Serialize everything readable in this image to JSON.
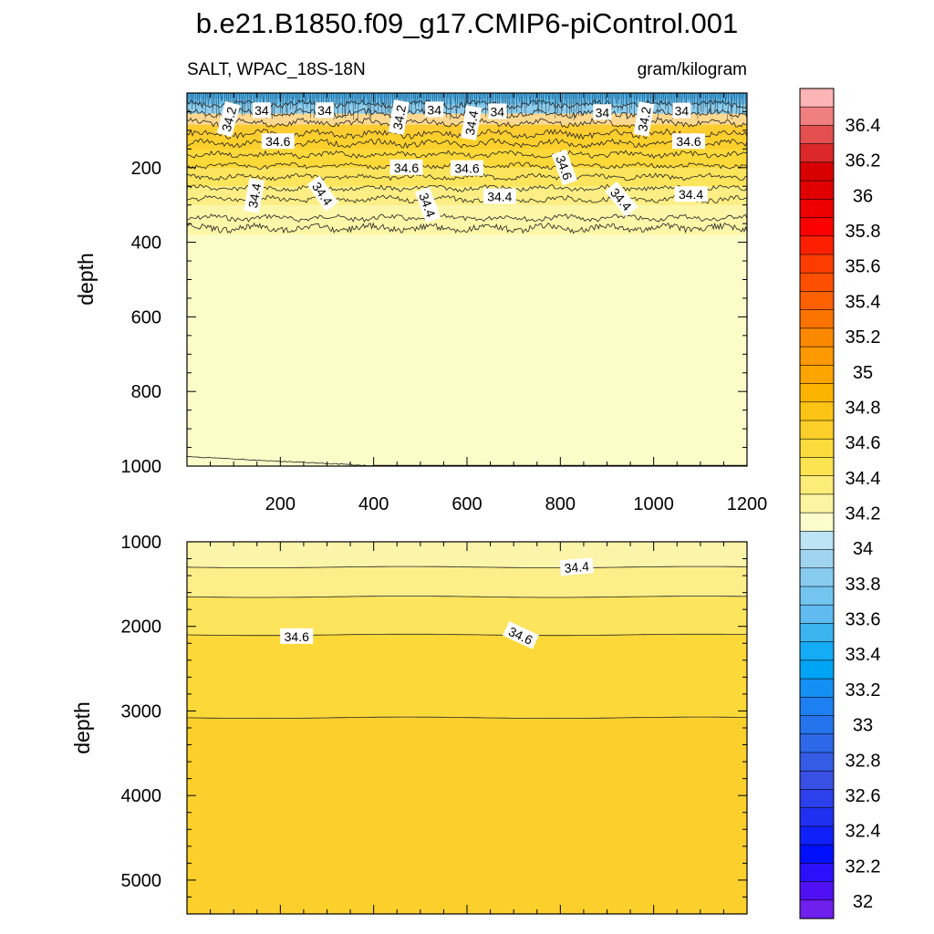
{
  "title": "b.e21.B1850.f09_g17.CMIP6-piControl.001",
  "chart_data": [
    {
      "type": "contour",
      "panel": "upper",
      "left_label": "SALT, WPAC_18S-18N",
      "right_label": "gram/kilogram",
      "ylabel": "depth",
      "xlabel": "",
      "xlim": [
        0,
        1200
      ],
      "ylim": [
        1000,
        0
      ],
      "xticks": [
        "200",
        "400",
        "600",
        "800",
        "1000",
        "1200"
      ],
      "yticks": [
        "200",
        "400",
        "600",
        "800",
        "1000"
      ],
      "contour_levels": [
        {
          "value": 34.4,
          "depth": 335,
          "roughness": 8
        },
        {
          "value": 34.4,
          "depth": 285,
          "roughness": 8
        },
        {
          "value": 34.4,
          "depth": 255,
          "roughness": 7
        },
        {
          "value": 34.6,
          "depth": 225,
          "roughness": 7
        },
        {
          "value": 34.6,
          "depth": 195,
          "roughness": 7
        },
        {
          "value": 34.6,
          "depth": 165,
          "roughness": 8
        },
        {
          "value": 34.6,
          "depth": 135,
          "roughness": 9
        },
        {
          "value": 34.2,
          "depth": 110,
          "roughness": 10
        },
        {
          "value": 34,
          "depth": 80,
          "roughness": 10
        },
        {
          "value": 34.2,
          "depth": 55,
          "roughness": 10
        },
        {
          "value": 34,
          "depth": 30,
          "roughness": 9
        }
      ],
      "contour_labels": [
        {
          "text": "34.2",
          "x": 90,
          "y": 70,
          "angle": -75
        },
        {
          "text": "34",
          "x": 160,
          "y": 47,
          "angle": 0
        },
        {
          "text": "34",
          "x": 295,
          "y": 47,
          "angle": 0
        },
        {
          "text": "34.2",
          "x": 455,
          "y": 65,
          "angle": -80
        },
        {
          "text": "34",
          "x": 530,
          "y": 45,
          "angle": 0
        },
        {
          "text": "34.4",
          "x": 610,
          "y": 80,
          "angle": -80
        },
        {
          "text": "34",
          "x": 665,
          "y": 50,
          "angle": 0
        },
        {
          "text": "34",
          "x": 890,
          "y": 52,
          "angle": 0
        },
        {
          "text": "34.2",
          "x": 980,
          "y": 70,
          "angle": -80
        },
        {
          "text": "34",
          "x": 1060,
          "y": 48,
          "angle": 0
        },
        {
          "text": "34.6",
          "x": 195,
          "y": 130,
          "angle": 0
        },
        {
          "text": "34.6",
          "x": 1075,
          "y": 130,
          "angle": 0
        },
        {
          "text": "34.6",
          "x": 470,
          "y": 200,
          "angle": 0
        },
        {
          "text": "34.6",
          "x": 600,
          "y": 202,
          "angle": 0
        },
        {
          "text": "34.6",
          "x": 808,
          "y": 200,
          "angle": 70
        },
        {
          "text": "34.4",
          "x": 145,
          "y": 275,
          "angle": -80
        },
        {
          "text": "34.4",
          "x": 290,
          "y": 270,
          "angle": 55
        },
        {
          "text": "34.4",
          "x": 515,
          "y": 300,
          "angle": 70
        },
        {
          "text": "34.4",
          "x": 670,
          "y": 278,
          "angle": 0
        },
        {
          "text": "34.4",
          "x": 930,
          "y": 285,
          "angle": 50
        },
        {
          "text": "34.4",
          "x": 1080,
          "y": 272,
          "angle": 0
        }
      ]
    },
    {
      "type": "contour",
      "panel": "lower",
      "ylabel": "depth",
      "xlabel": "",
      "xlim": [
        0,
        1200
      ],
      "ylim": [
        5400,
        1000
      ],
      "yticks": [
        "1000",
        "2000",
        "3000",
        "4000",
        "5000"
      ],
      "contour_levels": [
        {
          "value": 34.4,
          "depth": 1300
        },
        {
          "value": 34.4,
          "depth": 1650
        },
        {
          "value": 34.6,
          "depth": 2100
        },
        {
          "value": 34.6,
          "depth": 3080
        }
      ],
      "contour_labels": [
        {
          "text": "34.4",
          "x": 835,
          "y": 1300,
          "angle": -5
        },
        {
          "text": "34.6",
          "x": 235,
          "y": 2120,
          "angle": 0
        },
        {
          "text": "34.6",
          "x": 715,
          "y": 2110,
          "angle": 25
        }
      ]
    }
  ],
  "colorbar": {
    "labels": [
      "36.4",
      "36.2",
      "36",
      "35.8",
      "35.6",
      "35.4",
      "35.2",
      "35",
      "34.8",
      "34.6",
      "34.4",
      "34.2",
      "34",
      "33.8",
      "33.6",
      "33.4",
      "33.2",
      "33",
      "32.8",
      "32.6",
      "32.4",
      "32.2",
      "32"
    ],
    "colors_top_to_bottom": [
      "#fcb4b4",
      "#f08080",
      "#e45050",
      "#dc2828",
      "#d80000",
      "#e00000",
      "#ec0000",
      "#fc0000",
      "#fc2000",
      "#fc3c00",
      "#fc5000",
      "#fc6000",
      "#fc7400",
      "#fc8800",
      "#fc9800",
      "#fca400",
      "#fcb400",
      "#fcc414",
      "#fcd028",
      "#fcdc3c",
      "#fce450",
      "#fcec78",
      "#fcf4a0",
      "#fcfccc",
      "#bce4f4",
      "#a0d4f0",
      "#88ccf0",
      "#74c4f0",
      "#60bcf0",
      "#3cb4f0",
      "#14acf4",
      "#00a4f4",
      "#1490f4",
      "#1c80f0",
      "#2474ec",
      "#2c68e8",
      "#345ce4",
      "#3850e4",
      "#2c40ec",
      "#2030f0",
      "#1020f8",
      "#0010fc",
      "#2c10fc",
      "#5010f4",
      "#7020ec"
    ]
  }
}
